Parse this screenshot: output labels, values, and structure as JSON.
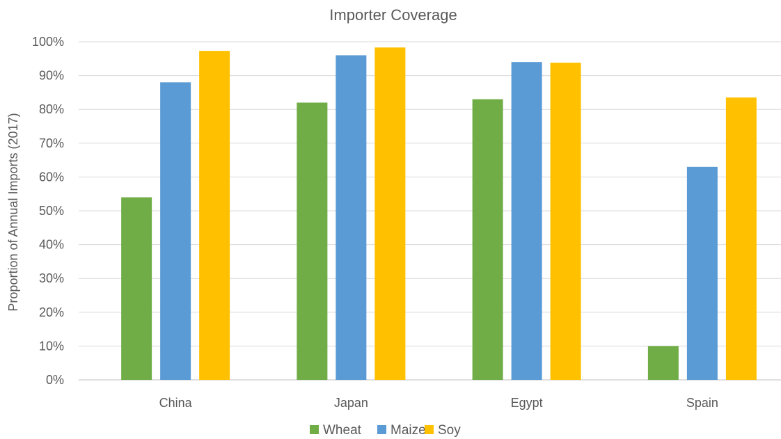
{
  "chart_data": {
    "type": "bar",
    "title": "Importer Coverage",
    "xlabel": "",
    "ylabel": "Proportion of Annual Imports (2017)",
    "categories": [
      "China",
      "Japan",
      "Egypt",
      "Spain"
    ],
    "series": [
      {
        "name": "Wheat",
        "values": [
          54,
          82,
          83,
          10
        ],
        "color": "#70AD47"
      },
      {
        "name": "Maize",
        "values": [
          88,
          96,
          94,
          63
        ],
        "color": "#5B9BD5"
      },
      {
        "name": "Soy",
        "values": [
          97.3,
          98.3,
          93.8,
          83.5
        ],
        "color": "#FFC000"
      }
    ],
    "ylim": [
      0,
      100
    ],
    "yticks": [
      "0%",
      "10%",
      "20%",
      "30%",
      "40%",
      "50%",
      "60%",
      "70%",
      "80%",
      "90%",
      "100%"
    ],
    "grid": true,
    "legend": "bottom-center"
  }
}
